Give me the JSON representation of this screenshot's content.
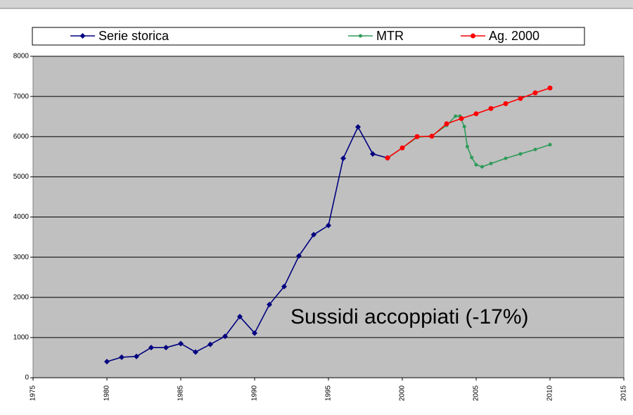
{
  "chart_data": {
    "type": "line",
    "annotation": "Sussidi accoppiati (-17%)",
    "xlim": [
      1975,
      2015
    ],
    "xticks": [
      1975,
      1980,
      1985,
      1990,
      1995,
      2000,
      2005,
      2010,
      2015
    ],
    "ylim": [
      0,
      8000
    ],
    "yticks": [
      0,
      1000,
      2000,
      3000,
      4000,
      5000,
      6000,
      7000,
      8000
    ],
    "grid": true,
    "series": [
      {
        "name": "Serie storica",
        "color": "#000080",
        "marker": "diamond",
        "x": [
          1980,
          1981,
          1982,
          1983,
          1984,
          1985,
          1986,
          1987,
          1988,
          1989,
          1990,
          1991,
          1992,
          1993,
          1994,
          1995,
          1996,
          1997,
          1998,
          1999
        ],
        "values": [
          400,
          510,
          530,
          750,
          750,
          850,
          640,
          830,
          1030,
          1520,
          1110,
          1820,
          2270,
          3030,
          3560,
          3790,
          5460,
          6240,
          5570,
          5470
        ]
      },
      {
        "name": "MTR",
        "color": "#2e9b5a",
        "marker": "circle-small",
        "x": [
          1999,
          2000,
          2001,
          2002,
          2003,
          2003.6,
          2003.9,
          2004.2,
          2004.4,
          2004.7,
          2005,
          2005.4,
          2006,
          2007,
          2008,
          2009,
          2010
        ],
        "values": [
          5470,
          5720,
          5980,
          6020,
          6280,
          6510,
          6510,
          6250,
          5750,
          5480,
          5300,
          5250,
          5330,
          5460,
          5570,
          5680,
          5800
        ]
      },
      {
        "name": "Ag. 2000",
        "color": "#ff0000",
        "marker": "circle",
        "x": [
          1999,
          2000,
          2001,
          2002,
          2003,
          2004,
          2005,
          2006,
          2007,
          2008,
          2009,
          2010
        ],
        "values": [
          5470,
          5720,
          6000,
          6010,
          6320,
          6450,
          6570,
          6700,
          6820,
          6950,
          7090,
          7210
        ]
      }
    ]
  }
}
